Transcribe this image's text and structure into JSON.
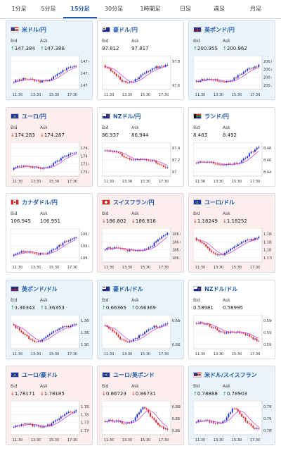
{
  "tabs": [
    {
      "label": "1分足",
      "active": false
    },
    {
      "label": "5分足",
      "active": false
    },
    {
      "label": "15分足",
      "active": true
    },
    {
      "label": "30分足",
      "active": false
    },
    {
      "label": "1時間足",
      "active": false
    },
    {
      "label": "日足",
      "active": false
    },
    {
      "label": "週足",
      "active": false
    },
    {
      "label": "月足",
      "active": false
    }
  ],
  "bid_label": "Bid",
  "ask_label": "Ask",
  "up_arrow": "↑",
  "down_arrow": "↓",
  "colors": {
    "up_bg": "#e9f3fb",
    "down_bg": "#fdeeee",
    "candle_up": "#1d2bd6",
    "candle_down": "#e02020",
    "ma": "#cc33cc"
  },
  "xticks": [
    "11:30",
    "13:30",
    "15:30",
    "17:30"
  ],
  "pairs": [
    {
      "name": "米ドル/円",
      "flag": "us",
      "dir": "up",
      "bid": "147.384",
      "ask": "147.386",
      "trend": "up",
      "yticks": [
        "147.4",
        "147.2",
        "147"
      ]
    },
    {
      "name": "豪ドル/円",
      "flag": "au",
      "dir": "none",
      "bid": "97.812",
      "ask": "97.817",
      "trend": "vdip",
      "yticks": [
        "97.8",
        "97.6"
      ]
    },
    {
      "name": "英ポンド/円",
      "flag": "uk",
      "dir": "up",
      "bid": "200.955",
      "ask": "200.962",
      "trend": "up",
      "yticks": [
        "200.8",
        "200.6",
        "200.4",
        "200.2"
      ]
    },
    {
      "name": "ユーロ/円",
      "flag": "eu",
      "dir": "down",
      "bid": "174.283",
      "ask": "174.287",
      "trend": "up",
      "yticks": [
        "174.2",
        "174",
        "173.8",
        "173.6"
      ]
    },
    {
      "name": "NZドル/円",
      "flag": "nz",
      "dir": "none",
      "bid": "86.937",
      "ask": "86.944",
      "trend": "down",
      "yticks": [
        "87.4",
        "87.2",
        "87"
      ]
    },
    {
      "name": "ランド/円",
      "flag": "za",
      "dir": "none",
      "bid": "8.483",
      "ask": "8.492",
      "trend": "lateup",
      "yticks": [
        "8.48",
        "8.46",
        "8.44"
      ]
    },
    {
      "name": "カナダドル/円",
      "flag": "ca",
      "dir": "none",
      "bid": "106.945",
      "ask": "106.951",
      "trend": "up",
      "yticks": [
        "106.9",
        "106.8",
        "106.7"
      ]
    },
    {
      "name": "スイスフラン/円",
      "flag": "ch",
      "dir": "down",
      "bid": "186.802",
      "ask": "186.818",
      "trend": "lateup",
      "yticks": [
        "186.8",
        "186.6",
        "186.4",
        "186.2"
      ]
    },
    {
      "name": "ユーロ/ドル",
      "flag": "eu",
      "dir": "down",
      "bid": "1.18249",
      "ask": "1.18252",
      "trend": "vdip",
      "yticks": [
        "1.184",
        "1.182",
        "1.18",
        "1.178"
      ]
    },
    {
      "name": "英ポンド/ドル",
      "flag": "uk",
      "dir": "up",
      "bid": "1.36343",
      "ask": "1.36353",
      "trend": "vdip",
      "yticks": [
        "1.364",
        "1.362",
        "1.36"
      ]
    },
    {
      "name": "豪ドル/ドル",
      "flag": "au",
      "dir": "up",
      "bid": "0.66365",
      "ask": "0.66369",
      "trend": "vdip",
      "yticks": [
        "0.664",
        "0.662"
      ]
    },
    {
      "name": "NZドル/ドル",
      "flag": "nz",
      "dir": "none",
      "bid": "0.58981",
      "ask": "0.58995",
      "trend": "down",
      "yticks": [
        "0.594",
        "0.592",
        "0.59"
      ]
    },
    {
      "name": "ユーロ/豪ドル",
      "flag": "eu",
      "dir": "down",
      "bid": "1.78171",
      "ask": "1.78185",
      "trend": "up",
      "yticks": [
        "1.782",
        "1.78",
        "1.778",
        "1.776"
      ]
    },
    {
      "name": "ユーロ/英ポンド",
      "flag": "eu",
      "dir": "down",
      "bid": "0.86723",
      "ask": "0.86731",
      "trend": "peakdown",
      "yticks": [
        "0.868",
        "0.8675",
        "0.867"
      ]
    },
    {
      "name": "米ドル/スイスフラン",
      "flag": "us",
      "dir": "up",
      "bid": "0.78888",
      "ask": "0.78903",
      "trend": "peakdown",
      "yticks": [
        "0.791",
        "0.79",
        "0.789"
      ]
    }
  ]
}
